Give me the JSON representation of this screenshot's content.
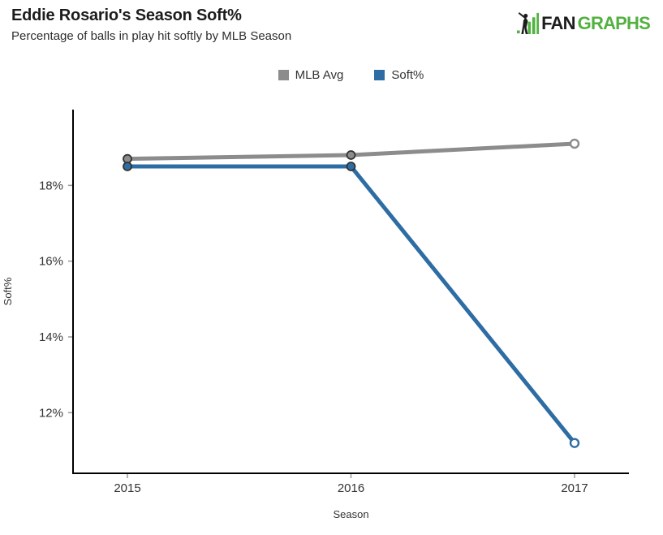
{
  "logo": {
    "fan": "FAN",
    "graphs": "GRAPHS",
    "green": "#52b140",
    "black": "#1d1d1d"
  },
  "chart_data": {
    "type": "line",
    "title": "Eddie Rosario's Season Soft%",
    "subtitle": "Percentage of balls in play hit softly by MLB Season",
    "categories": [
      "2015",
      "2016",
      "2017"
    ],
    "series": [
      {
        "name": "MLB Avg",
        "color": "#8c8c8c",
        "values": [
          18.7,
          18.8,
          19.1
        ]
      },
      {
        "name": "Soft%",
        "color": "#2e6da4",
        "values": [
          18.5,
          18.5,
          11.2
        ]
      }
    ],
    "xlabel": "Season",
    "ylabel": "Soft%",
    "ylim": [
      10.4,
      20.0
    ],
    "yticks": [
      12,
      14,
      16,
      18
    ],
    "ytick_suffix": "%",
    "legend_position": "top-center",
    "grid": false,
    "axis_color": "#000000",
    "tick_color": "#999999",
    "label_color": "#333333",
    "marker_style": {
      "filled_stroke": "#333333",
      "open_fill": "#ffffff",
      "open_last_point": true
    }
  }
}
